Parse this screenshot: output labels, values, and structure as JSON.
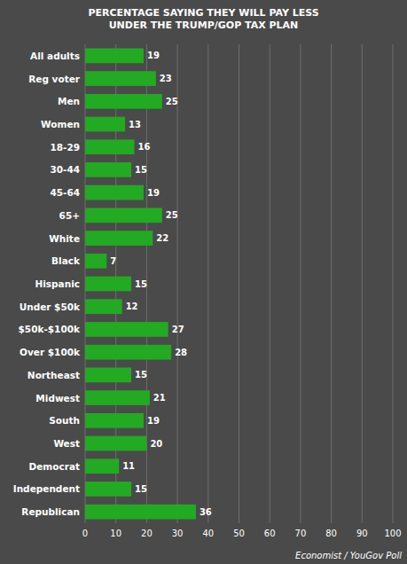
{
  "chart_data": {
    "type": "bar",
    "orientation": "horizontal",
    "title": "PERCENTAGE SAYING THEY WILL PAY LESS UNDER THE TRUMP/GOP TAX PLAN",
    "source": "Economist / YouGov Poll",
    "categories": [
      "All adults",
      "Reg voter",
      "Men",
      "Women",
      "18-29",
      "30-44",
      "45-64",
      "65+",
      "White",
      "Black",
      "Hispanic",
      "Under $50k",
      "$50k-$100k",
      "Over $100k",
      "Northeast",
      "Midwest",
      "South",
      "West",
      "Democrat",
      "Independent",
      "Republican"
    ],
    "values": [
      19,
      23,
      25,
      13,
      16,
      15,
      19,
      25,
      22,
      7,
      15,
      12,
      27,
      28,
      15,
      21,
      19,
      20,
      11,
      15,
      36
    ],
    "color": "#22aa22",
    "xlim": [
      0,
      100
    ],
    "xticks": [
      0,
      10,
      20,
      30,
      40,
      50,
      60,
      70,
      80,
      90,
      100
    ],
    "grid": true,
    "data_labels": true
  }
}
